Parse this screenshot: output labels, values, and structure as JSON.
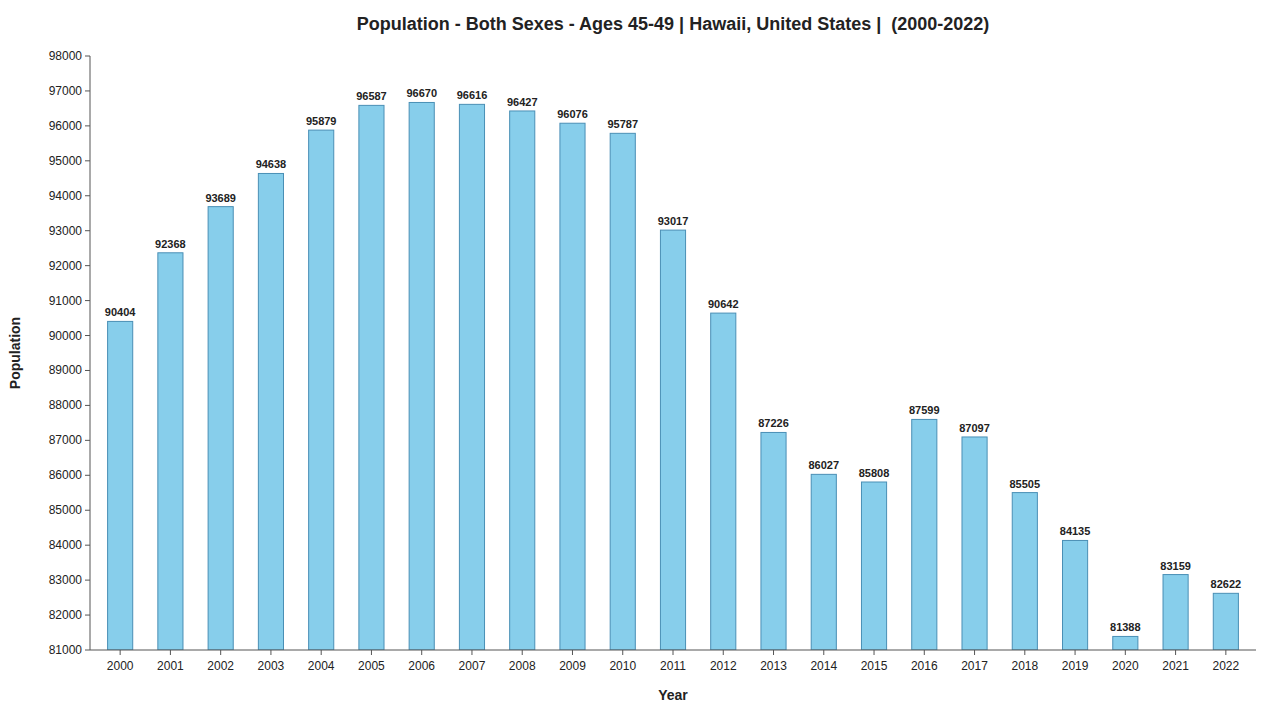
{
  "chart_data": {
    "type": "bar",
    "title": "Population - Both Sexes - Ages 45-49 | Hawaii, United States |  (2000-2022)",
    "x_label": "Year",
    "y_label": "Population",
    "categories": [
      "2000",
      "2001",
      "2002",
      "2003",
      "2004",
      "2005",
      "2006",
      "2007",
      "2008",
      "2009",
      "2010",
      "2011",
      "2012",
      "2013",
      "2014",
      "2015",
      "2016",
      "2017",
      "2018",
      "2019",
      "2020",
      "2021",
      "2022"
    ],
    "values": [
      90404,
      92368,
      93689,
      94638,
      95879,
      96587,
      96670,
      96616,
      96427,
      96076,
      95787,
      93017,
      90642,
      87226,
      86027,
      85808,
      87599,
      87097,
      85505,
      84135,
      81388,
      83159,
      82622
    ],
    "color": "#87CEEB",
    "ylim": [
      81000,
      98000
    ],
    "yticks": [
      81000,
      82000,
      83000,
      84000,
      85000,
      86000,
      87000,
      88000,
      89000,
      90000,
      91000,
      92000,
      93000,
      94000,
      95000,
      96000,
      97000,
      98000
    ],
    "data_labels": true,
    "grid": false
  }
}
